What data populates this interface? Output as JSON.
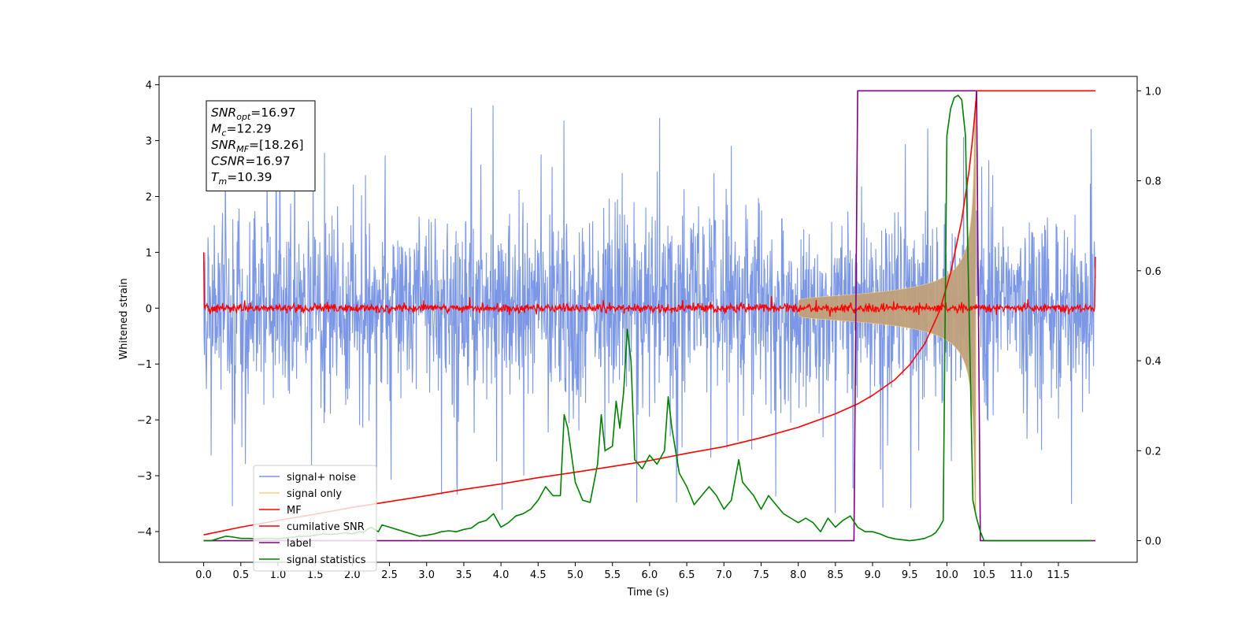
{
  "chart_data": {
    "type": "line",
    "xlabel": "Time (s)",
    "ylabel": "Whitened strain",
    "xlim": [
      -0.6,
      12.56
    ],
    "ylim": [
      -4.55,
      4.15
    ],
    "y2lim": [
      -0.048,
      1.032
    ],
    "x_ticks": [
      "0.0",
      "0.5",
      "1.0",
      "1.5",
      "2.0",
      "2.5",
      "3.0",
      "3.5",
      "4.0",
      "4.5",
      "5.0",
      "5.5",
      "6.0",
      "6.5",
      "7.0",
      "7.5",
      "8.0",
      "8.5",
      "9.0",
      "9.5",
      "10.0",
      "10.5",
      "11.0",
      "11.5"
    ],
    "y_ticks": [
      "4",
      "3",
      "2",
      "1",
      "0",
      "−1",
      "−2",
      "−3",
      "−4"
    ],
    "y2_ticks": [
      "1.0",
      "0.8",
      "0.6",
      "0.4",
      "0.2",
      "0.0"
    ],
    "annotation": [
      {
        "name": "SNR",
        "sub": "opt",
        "value": "=16.97"
      },
      {
        "name": "M",
        "sub": "c",
        "value": "=12.29"
      },
      {
        "name": "SNR",
        "sub": "MF",
        "value": "=[18.26]"
      },
      {
        "name": "CSNR",
        "sub": "",
        "value": "=16.97"
      },
      {
        "name": "T",
        "sub": "m",
        "value": "=10.39"
      }
    ],
    "legend_placement": "lower-left",
    "series": [
      {
        "name": "signal+ noise",
        "color": "#7995e6",
        "axis": "left",
        "noise_amplitude": 2.2,
        "x_range": [
          0,
          12.0
        ]
      },
      {
        "name": "signal only",
        "color": "#f7cf80",
        "axis": "left",
        "chirp_start": 8.0,
        "merger": 10.39,
        "peak_amplitude": 3.7
      },
      {
        "name": "MF",
        "color": "#ff0000",
        "axis": "left",
        "x_range": [
          0,
          12.0
        ],
        "edge_value": 1.0,
        "noise_level": 0.07
      },
      {
        "name": "cumilative SNR",
        "color": "#ff0000",
        "axis": "right",
        "x": [
          0,
          0.5,
          1,
          1.5,
          2,
          2.5,
          3,
          3.5,
          4,
          4.5,
          5,
          5.5,
          6,
          6.5,
          7,
          7.5,
          8,
          8.5,
          8.8,
          9,
          9.3,
          9.5,
          9.7,
          9.9,
          10.05,
          10.2,
          10.3,
          10.35,
          10.39,
          10.4,
          12.0
        ],
        "y": [
          0.013,
          0.03,
          0.045,
          0.059,
          0.074,
          0.087,
          0.1,
          0.114,
          0.126,
          0.14,
          0.152,
          0.165,
          0.178,
          0.194,
          0.209,
          0.229,
          0.252,
          0.282,
          0.304,
          0.323,
          0.358,
          0.391,
          0.437,
          0.51,
          0.595,
          0.713,
          0.824,
          0.9,
          0.975,
          1.0,
          1.0
        ]
      },
      {
        "name": "label",
        "color": "#800080",
        "axis": "right",
        "x": [
          0,
          8.75,
          8.8,
          10.4,
          10.45,
          12.0
        ],
        "y": [
          0,
          0,
          1,
          1,
          0,
          0
        ]
      },
      {
        "name": "signal statistics",
        "color": "#008000",
        "axis": "right",
        "x": [
          0,
          0.1,
          0.2,
          0.3,
          0.4,
          0.5,
          0.6,
          0.7,
          0.8,
          0.9,
          1.0,
          1.1,
          1.2,
          1.3,
          1.4,
          1.5,
          1.6,
          1.7,
          1.8,
          1.9,
          2.0,
          2.1,
          2.15,
          2.2,
          2.25,
          2.3,
          2.35,
          2.4,
          2.5,
          2.6,
          2.7,
          2.8,
          2.9,
          3.0,
          3.1,
          3.2,
          3.3,
          3.4,
          3.5,
          3.6,
          3.7,
          3.8,
          3.9,
          4.0,
          4.1,
          4.2,
          4.3,
          4.4,
          4.5,
          4.6,
          4.7,
          4.8,
          4.85,
          4.9,
          5.0,
          5.1,
          5.2,
          5.3,
          5.35,
          5.4,
          5.5,
          5.55,
          5.6,
          5.65,
          5.7,
          5.75,
          5.8,
          5.9,
          6.0,
          6.1,
          6.2,
          6.25,
          6.3,
          6.4,
          6.5,
          6.6,
          6.7,
          6.8,
          6.9,
          7.0,
          7.1,
          7.2,
          7.25,
          7.3,
          7.4,
          7.5,
          7.6,
          7.7,
          7.8,
          7.9,
          8.0,
          8.1,
          8.2,
          8.3,
          8.4,
          8.5,
          8.6,
          8.7,
          8.8,
          8.9,
          9.0,
          9.1,
          9.2,
          9.3,
          9.4,
          9.5,
          9.6,
          9.7,
          9.8,
          9.85,
          9.9,
          9.95,
          10.0,
          10.05,
          10.1,
          10.15,
          10.2,
          10.25,
          10.3,
          10.35,
          10.4,
          10.45,
          10.5,
          11.0,
          11.5,
          11.95
        ],
        "y": [
          0.0,
          0.0,
          0.005,
          0.01,
          0.008,
          0.005,
          0.005,
          0.004,
          0.005,
          0.005,
          0.004,
          0.006,
          0.008,
          0.01,
          0.01,
          0.012,
          0.015,
          0.014,
          0.015,
          0.018,
          0.015,
          0.02,
          0.018,
          0.025,
          0.03,
          0.025,
          0.02,
          0.035,
          0.03,
          0.025,
          0.02,
          0.015,
          0.01,
          0.012,
          0.015,
          0.02,
          0.022,
          0.02,
          0.025,
          0.028,
          0.04,
          0.045,
          0.06,
          0.03,
          0.04,
          0.055,
          0.06,
          0.07,
          0.09,
          0.12,
          0.1,
          0.1,
          0.28,
          0.25,
          0.13,
          0.09,
          0.085,
          0.17,
          0.28,
          0.2,
          0.21,
          0.31,
          0.25,
          0.33,
          0.47,
          0.4,
          0.18,
          0.16,
          0.19,
          0.17,
          0.2,
          0.32,
          0.25,
          0.15,
          0.12,
          0.08,
          0.1,
          0.12,
          0.1,
          0.07,
          0.09,
          0.18,
          0.13,
          0.12,
          0.1,
          0.07,
          0.1,
          0.08,
          0.06,
          0.05,
          0.04,
          0.05,
          0.04,
          0.02,
          0.05,
          0.03,
          0.045,
          0.055,
          0.03,
          0.02,
          0.02,
          0.015,
          0.008,
          0.004,
          0.002,
          0.0,
          0.002,
          0.005,
          0.012,
          0.018,
          0.03,
          0.045,
          0.9,
          0.96,
          0.985,
          0.99,
          0.98,
          0.9,
          0.5,
          0.09,
          0.05,
          0.02,
          0.0,
          0.0,
          0.0,
          0.0
        ]
      }
    ]
  }
}
